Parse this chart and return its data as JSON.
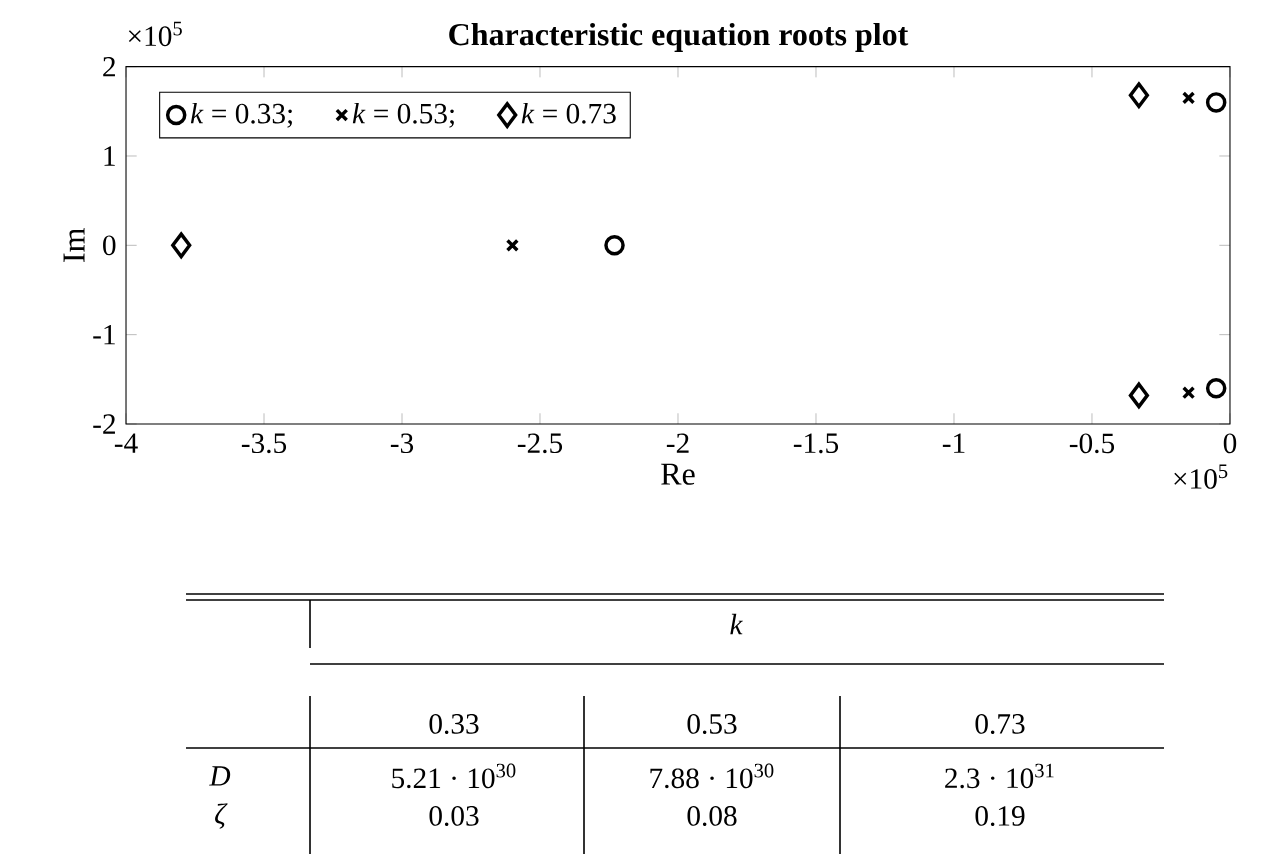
{
  "chart_data": [
    {
      "type": "scatter",
      "title": "Characteristic equation roots plot",
      "xlabel": "Re",
      "ylabel": "Im",
      "xlim": [
        -4,
        0
      ],
      "xticks": [
        -4,
        -3.5,
        -3,
        -2.5,
        -2,
        -1.5,
        -1,
        -0.5,
        0
      ],
      "ylim": [
        -2,
        2
      ],
      "yticks": [
        -2,
        -1,
        0,
        1,
        2
      ],
      "legend": "top left",
      "grid": false,
      "annotations": [
        "×10$^{5}$",
        "×10$^{5}$"
      ],
      "series": [
        {
          "name": "*k* = 0.33;",
          "color": "#000000",
          "marker": "circle",
          "x": [
            -2.23,
            -0.05,
            -0.05
          ],
          "values": [
            0,
            1.6,
            -1.6
          ]
        },
        {
          "name": "*k* = 0.53;",
          "color": "#000000",
          "marker": "cross",
          "x": [
            -2.6,
            -0.15,
            -0.15
          ],
          "values": [
            0,
            1.65,
            -1.65
          ]
        },
        {
          "name": "*k* = 0.73",
          "color": "#000000",
          "marker": "diamond",
          "x": [
            -3.8,
            -0.33,
            -0.33
          ],
          "values": [
            0,
            1.68,
            -1.68
          ]
        }
      ]
    },
    {
      "type": "other",
      "annotations": [
        "k",
        "0.33",
        "0.53",
        "0.73",
        "D",
        "5.21 · 10$^{30}$",
        "7.88 · 10$^{30}$",
        "2.3 · 10$^{31}$",
        "ζ",
        "0.03",
        "0.08",
        "0.19"
      ]
    }
  ]
}
